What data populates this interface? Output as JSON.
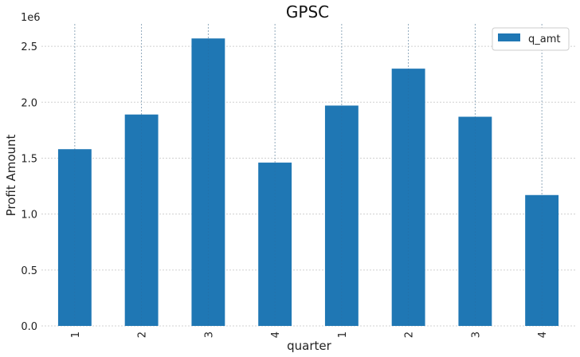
{
  "chart_data": {
    "type": "bar",
    "title": "GPSC",
    "xlabel": "quarter",
    "ylabel": "Profit Amount",
    "y_scale_label": "1e6",
    "categories": [
      "1",
      "2",
      "3",
      "4",
      "1",
      "2",
      "3",
      "4"
    ],
    "series": [
      {
        "name": "q_amt",
        "color": "#1f77b4",
        "values": [
          1580000,
          1890000,
          2570000,
          1460000,
          1970000,
          2300000,
          1870000,
          1170000
        ]
      }
    ],
    "ylim": [
      0,
      2700000
    ],
    "yticks": [
      0,
      500000,
      1000000,
      1500000,
      2000000,
      2500000
    ],
    "ytick_labels": [
      "0.0",
      "0.5",
      "1.0",
      "1.5",
      "2.0",
      "2.5"
    ],
    "grid": true,
    "legend_position": "top-right"
  }
}
